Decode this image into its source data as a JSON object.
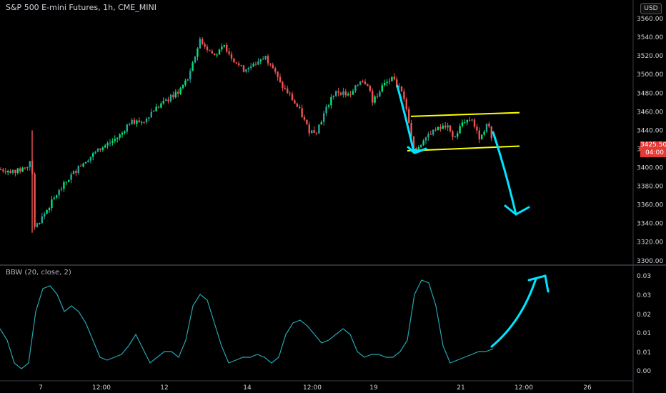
{
  "header": {
    "title": "S&P 500 E-mini Futures, 1h, CME_MINI",
    "currency": "USD"
  },
  "price_tag": {
    "price": "3425.50",
    "countdown": "04:00"
  },
  "indicator": {
    "title": "BBW (20, close, 2)"
  },
  "colors": {
    "up": "#26a69a",
    "upBright": "#00e676",
    "down": "#ef5350",
    "channel": "#ffff00",
    "arrow": "#00e5ff",
    "bbw": "#26a6b0",
    "tag": "#e53935"
  },
  "chart_data": [
    {
      "type": "candlestick",
      "title": "S&P 500 E-mini Futures, 1h, CME_MINI",
      "x_ticks": [
        "7",
        "12:00",
        "12",
        "14",
        "12:00",
        "19",
        "21",
        "12:00",
        "26"
      ],
      "y_ticks": [
        3300,
        3320,
        3340,
        3360,
        3380,
        3400,
        3420,
        3440,
        3460,
        3480,
        3500,
        3520,
        3540,
        3560
      ],
      "ylim": [
        3296,
        3580
      ],
      "close_path": [
        [
          0,
          3398
        ],
        [
          24,
          3396
        ],
        [
          40,
          3402
        ],
        [
          44,
          3415
        ],
        [
          48,
          3335
        ],
        [
          60,
          3348
        ],
        [
          80,
          3372
        ],
        [
          100,
          3392
        ],
        [
          120,
          3408
        ],
        [
          140,
          3420
        ],
        [
          160,
          3430
        ],
        [
          170,
          3436
        ],
        [
          180,
          3448
        ],
        [
          200,
          3450
        ],
        [
          215,
          3462
        ],
        [
          230,
          3470
        ],
        [
          250,
          3482
        ],
        [
          265,
          3498
        ],
        [
          273,
          3520
        ],
        [
          280,
          3538
        ],
        [
          290,
          3528
        ],
        [
          300,
          3520
        ],
        [
          315,
          3530
        ],
        [
          325,
          3518
        ],
        [
          340,
          3505
        ],
        [
          355,
          3510
        ],
        [
          370,
          3520
        ],
        [
          380,
          3510
        ],
        [
          392,
          3490
        ],
        [
          405,
          3478
        ],
        [
          420,
          3460
        ],
        [
          432,
          3440
        ],
        [
          442,
          3438
        ],
        [
          452,
          3455
        ],
        [
          465,
          3478
        ],
        [
          475,
          3482
        ],
        [
          490,
          3476
        ],
        [
          505,
          3495
        ],
        [
          515,
          3490
        ],
        [
          522,
          3470
        ],
        [
          535,
          3488
        ],
        [
          548,
          3495
        ],
        [
          560,
          3485
        ],
        [
          570,
          3460
        ],
        [
          578,
          3425
        ],
        [
          585,
          3418
        ],
        [
          595,
          3435
        ],
        [
          610,
          3440
        ],
        [
          625,
          3445
        ],
        [
          635,
          3430
        ],
        [
          648,
          3450
        ],
        [
          660,
          3452
        ],
        [
          670,
          3432
        ],
        [
          683,
          3448
        ],
        [
          690,
          3426
        ]
      ],
      "annotations": {
        "channel_upper": [
          [
            575,
            3455
          ],
          [
            727,
            3459
          ]
        ],
        "channel_lower": [
          [
            570,
            3418
          ],
          [
            727,
            3423
          ]
        ]
      }
    },
    {
      "type": "line",
      "title": "BBW (20, close, 2)",
      "y_ticks": [
        "0.03",
        "0.03",
        "0.02",
        "0.01",
        "0.01",
        "0.00"
      ],
      "ylim": [
        -0.002,
        0.038
      ],
      "series": [
        {
          "values": [
            [
              0,
              0.016
            ],
            [
              10,
              0.012
            ],
            [
              20,
              0.004
            ],
            [
              30,
              0.002
            ],
            [
              40,
              0.004
            ],
            [
              50,
              0.022
            ],
            [
              60,
              0.03
            ],
            [
              70,
              0.031
            ],
            [
              80,
              0.028
            ],
            [
              90,
              0.022
            ],
            [
              100,
              0.024
            ],
            [
              110,
              0.022
            ],
            [
              120,
              0.018
            ],
            [
              130,
              0.012
            ],
            [
              140,
              0.006
            ],
            [
              150,
              0.005
            ],
            [
              160,
              0.006
            ],
            [
              170,
              0.007
            ],
            [
              180,
              0.01
            ],
            [
              190,
              0.014
            ],
            [
              200,
              0.009
            ],
            [
              210,
              0.004
            ],
            [
              220,
              0.006
            ],
            [
              230,
              0.008
            ],
            [
              240,
              0.008
            ],
            [
              250,
              0.006
            ],
            [
              260,
              0.012
            ],
            [
              270,
              0.024
            ],
            [
              280,
              0.028
            ],
            [
              290,
              0.026
            ],
            [
              300,
              0.018
            ],
            [
              310,
              0.01
            ],
            [
              320,
              0.004
            ],
            [
              330,
              0.005
            ],
            [
              340,
              0.006
            ],
            [
              350,
              0.006
            ],
            [
              360,
              0.007
            ],
            [
              370,
              0.006
            ],
            [
              380,
              0.004
            ],
            [
              390,
              0.006
            ],
            [
              400,
              0.014
            ],
            [
              410,
              0.018
            ],
            [
              420,
              0.019
            ],
            [
              430,
              0.017
            ],
            [
              440,
              0.014
            ],
            [
              450,
              0.011
            ],
            [
              460,
              0.012
            ],
            [
              470,
              0.014
            ],
            [
              480,
              0.016
            ],
            [
              490,
              0.014
            ],
            [
              500,
              0.008
            ],
            [
              510,
              0.006
            ],
            [
              520,
              0.007
            ],
            [
              530,
              0.007
            ],
            [
              540,
              0.006
            ],
            [
              550,
              0.006
            ],
            [
              560,
              0.008
            ],
            [
              570,
              0.012
            ],
            [
              580,
              0.028
            ],
            [
              590,
              0.033
            ],
            [
              600,
              0.032
            ],
            [
              610,
              0.024
            ],
            [
              620,
              0.01
            ],
            [
              630,
              0.004
            ],
            [
              640,
              0.005
            ],
            [
              650,
              0.006
            ],
            [
              660,
              0.007
            ],
            [
              670,
              0.008
            ],
            [
              680,
              0.008
            ],
            [
              690,
              0.009
            ]
          ]
        }
      ]
    }
  ]
}
